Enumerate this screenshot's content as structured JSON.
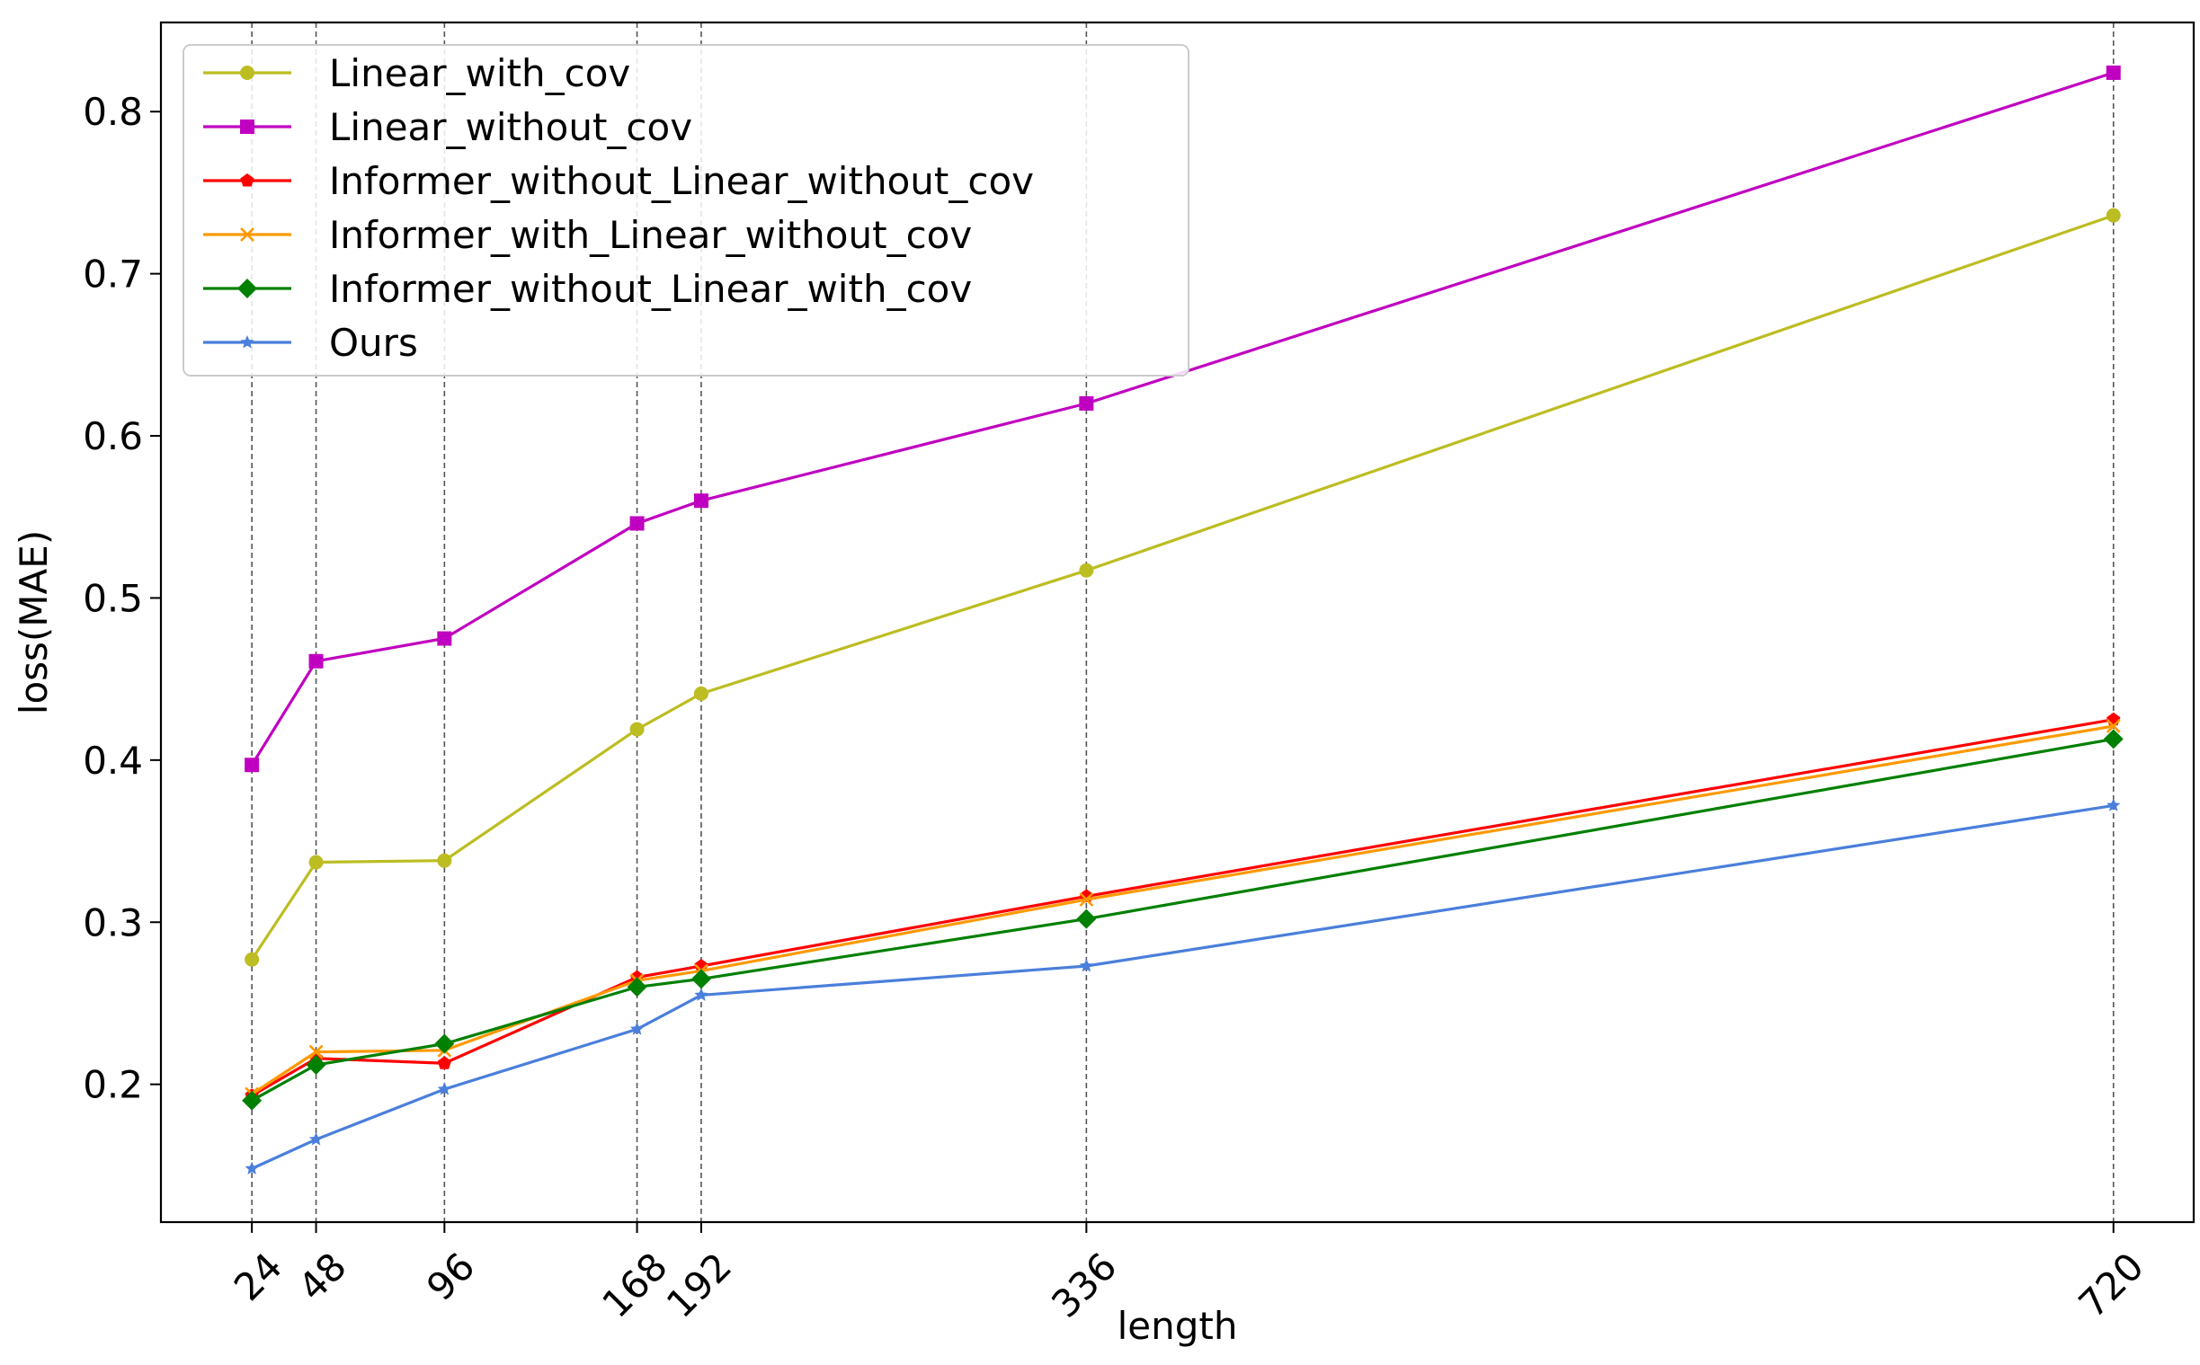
{
  "chart_data": {
    "type": "line",
    "title": "",
    "xlabel": "length",
    "ylabel": "loss(MAE)",
    "x": [
      24,
      48,
      96,
      168,
      192,
      336,
      720
    ],
    "x_tick_labels": [
      "24",
      "48",
      "96",
      "168",
      "192",
      "336",
      "720"
    ],
    "xlim": [
      -10,
      750
    ],
    "ylim": [
      0.115,
      0.855
    ],
    "y_ticks": [
      0.2,
      0.3,
      0.4,
      0.5,
      0.6,
      0.7,
      0.8
    ],
    "y_tick_labels": [
      "0.2",
      "0.3",
      "0.4",
      "0.5",
      "0.6",
      "0.7",
      "0.8"
    ],
    "vertical_gridlines": "dashed at each x tick",
    "legend_position": "upper-left",
    "series": [
      {
        "name": "Linear_with_cov",
        "color": "#bcbd22",
        "marker": "circle",
        "values": [
          0.277,
          0.337,
          0.338,
          0.419,
          0.441,
          0.517,
          0.736
        ]
      },
      {
        "name": "Linear_without_cov",
        "color": "#c000c0",
        "marker": "square",
        "values": [
          0.397,
          0.461,
          0.475,
          0.546,
          0.56,
          0.62,
          0.824
        ]
      },
      {
        "name": "Informer_without_Linear_without_cov",
        "color": "#ff0000",
        "marker": "pentagon",
        "values": [
          0.193,
          0.216,
          0.213,
          0.266,
          0.273,
          0.316,
          0.425
        ]
      },
      {
        "name": "Informer_with_Linear_without_cov",
        "color": "#ff9900",
        "marker": "x",
        "values": [
          0.194,
          0.22,
          0.221,
          0.264,
          0.27,
          0.314,
          0.421
        ]
      },
      {
        "name": "Informer_without_Linear_with_cov",
        "color": "#008000",
        "marker": "diamond",
        "values": [
          0.19,
          0.212,
          0.225,
          0.26,
          0.265,
          0.302,
          0.413
        ]
      },
      {
        "name": "Ours",
        "color": "#4a7fdb",
        "marker": "star",
        "values": [
          0.148,
          0.166,
          0.197,
          0.234,
          0.255,
          0.273,
          0.372
        ]
      }
    ]
  }
}
